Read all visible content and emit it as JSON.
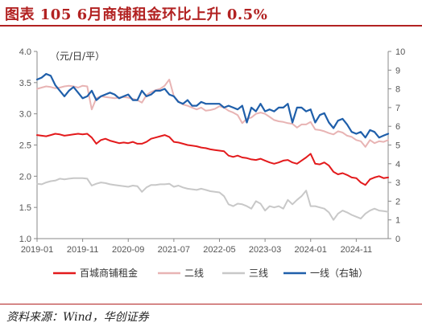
{
  "header": {
    "title": "图表 105   6月商铺租金环比上升 0.5%"
  },
  "footer": {
    "source": "资料来源：Wind，华创证券"
  },
  "colors": {
    "accent": "#b22222",
    "series_main": "#e31a1c",
    "series_tier2": "#e8b4b4",
    "series_tier3": "#c8c8c8",
    "series_tier1": "#1f5faa"
  },
  "chart_data": {
    "type": "line",
    "unit_label": "（元/日/平）",
    "x": [
      "2019-01",
      "2019-02",
      "2019-03",
      "2019-04",
      "2019-05",
      "2019-06",
      "2019-07",
      "2019-08",
      "2019-09",
      "2019-10",
      "2019-11",
      "2019-12",
      "2020-01",
      "2020-02",
      "2020-03",
      "2020-04",
      "2020-05",
      "2020-06",
      "2020-07",
      "2020-08",
      "2020-09",
      "2020-10",
      "2020-11",
      "2020-12",
      "2021-01",
      "2021-02",
      "2021-03",
      "2021-04",
      "2021-05",
      "2021-06",
      "2021-07",
      "2021-08",
      "2021-09",
      "2021-10",
      "2021-11",
      "2021-12",
      "2022-01",
      "2022-02",
      "2022-03",
      "2022-04",
      "2022-05",
      "2022-06",
      "2022-07",
      "2022-08",
      "2022-09",
      "2022-10",
      "2022-11",
      "2022-12",
      "2023-01",
      "2023-02",
      "2023-03",
      "2023-04",
      "2023-05",
      "2023-06",
      "2023-07",
      "2023-08",
      "2023-09",
      "2023-10",
      "2023-11",
      "2023-12",
      "2024-01",
      "2024-02",
      "2024-03",
      "2024-04",
      "2024-05",
      "2024-06",
      "2024-07",
      "2024-08",
      "2024-09",
      "2024-10",
      "2024-11",
      "2024-12",
      "2025-01",
      "2025-02",
      "2025-03",
      "2025-04",
      "2025-05",
      "2025-06"
    ],
    "x_ticks": [
      "2019-01",
      "2019-11",
      "2020-09",
      "2021-07",
      "2022-05",
      "2023-03",
      "2024-01",
      "2024-11"
    ],
    "y_left": {
      "lim": [
        1.0,
        4.0
      ],
      "ticks": [
        "1.0",
        "1.5",
        "2.0",
        "2.5",
        "3.0",
        "3.5",
        "4.0"
      ]
    },
    "y_right": {
      "lim": [
        0,
        10
      ],
      "ticks": [
        "0",
        "1",
        "2",
        "3",
        "4",
        "5",
        "6",
        "7",
        "8",
        "9",
        "10"
      ]
    },
    "grid": false,
    "legend_position": "bottom",
    "series": [
      {
        "name": "百城商铺租金",
        "axis": "left",
        "color": "#e31a1c",
        "width": 2,
        "values": [
          2.66,
          2.65,
          2.64,
          2.66,
          2.68,
          2.67,
          2.65,
          2.66,
          2.67,
          2.68,
          2.67,
          2.68,
          2.62,
          2.52,
          2.58,
          2.6,
          2.57,
          2.55,
          2.53,
          2.54,
          2.53,
          2.55,
          2.52,
          2.52,
          2.55,
          2.6,
          2.62,
          2.64,
          2.66,
          2.63,
          2.55,
          2.54,
          2.52,
          2.5,
          2.49,
          2.48,
          2.46,
          2.45,
          2.43,
          2.42,
          2.41,
          2.4,
          2.33,
          2.31,
          2.33,
          2.3,
          2.29,
          2.27,
          2.26,
          2.28,
          2.25,
          2.22,
          2.2,
          2.22,
          2.25,
          2.26,
          2.22,
          2.2,
          2.25,
          2.3,
          2.36,
          2.2,
          2.19,
          2.22,
          2.17,
          2.07,
          2.03,
          2.05,
          2.02,
          1.98,
          1.97,
          1.9,
          1.86,
          1.95,
          1.98,
          2.0,
          1.97,
          1.98
        ]
      },
      {
        "name": "二线",
        "axis": "left",
        "color": "#e8b4b4",
        "width": 2,
        "values": [
          3.4,
          3.42,
          3.44,
          3.43,
          3.41,
          3.42,
          3.44,
          3.45,
          3.44,
          3.42,
          3.45,
          3.44,
          3.07,
          3.25,
          3.28,
          3.27,
          3.26,
          3.25,
          3.26,
          3.27,
          3.26,
          3.24,
          3.22,
          3.18,
          3.3,
          3.35,
          3.38,
          3.4,
          3.45,
          3.55,
          3.28,
          3.2,
          3.15,
          3.13,
          3.1,
          3.07,
          3.1,
          3.05,
          3.06,
          3.08,
          3.12,
          3.1,
          3.05,
          3.02,
          2.98,
          2.85,
          2.92,
          2.94,
          3.0,
          3.02,
          3.0,
          2.95,
          2.9,
          2.88,
          2.87,
          2.85,
          2.84,
          2.78,
          2.83,
          2.83,
          2.87,
          2.75,
          2.74,
          2.72,
          2.69,
          2.67,
          2.72,
          2.7,
          2.65,
          2.63,
          2.58,
          2.56,
          2.47,
          2.58,
          2.53,
          2.56,
          2.55,
          2.58
        ]
      },
      {
        "name": "三线",
        "axis": "left",
        "color": "#c8c8c8",
        "width": 2,
        "values": [
          1.88,
          1.87,
          1.9,
          1.92,
          1.93,
          1.96,
          1.95,
          1.96,
          1.97,
          1.97,
          1.97,
          1.96,
          1.85,
          1.88,
          1.9,
          1.89,
          1.87,
          1.86,
          1.85,
          1.84,
          1.83,
          1.85,
          1.84,
          1.75,
          1.82,
          1.86,
          1.86,
          1.87,
          1.87,
          1.88,
          1.83,
          1.85,
          1.82,
          1.8,
          1.79,
          1.78,
          1.8,
          1.78,
          1.76,
          1.75,
          1.74,
          1.68,
          1.55,
          1.52,
          1.56,
          1.55,
          1.52,
          1.48,
          1.6,
          1.56,
          1.45,
          1.52,
          1.5,
          1.52,
          1.48,
          1.62,
          1.55,
          1.62,
          1.68,
          1.77,
          1.52,
          1.52,
          1.5,
          1.48,
          1.42,
          1.3,
          1.4,
          1.45,
          1.42,
          1.38,
          1.35,
          1.32,
          1.4,
          1.45,
          1.48,
          1.45,
          1.44,
          1.43
        ]
      },
      {
        "name": "一线（右轴）",
        "axis": "right",
        "color": "#1f5faa",
        "width": 2.2,
        "values": [
          8.5,
          8.6,
          8.8,
          8.7,
          8.2,
          7.9,
          7.6,
          7.9,
          8.1,
          7.8,
          7.5,
          7.6,
          7.9,
          7.4,
          7.6,
          7.7,
          7.8,
          7.7,
          7.5,
          7.6,
          7.7,
          7.4,
          7.4,
          7.9,
          7.6,
          7.7,
          7.9,
          7.9,
          8.0,
          7.7,
          7.6,
          7.3,
          7.2,
          7.4,
          7.1,
          7.1,
          7.3,
          7.2,
          7.2,
          7.2,
          7.2,
          7.0,
          7.1,
          7.0,
          6.9,
          7.1,
          6.2,
          7.0,
          6.8,
          7.2,
          6.8,
          6.9,
          6.8,
          7.0,
          7.0,
          7.2,
          6.2,
          7.0,
          7.0,
          6.8,
          6.9,
          6.2,
          6.6,
          6.7,
          6.2,
          5.9,
          6.3,
          6.4,
          6.1,
          5.7,
          5.6,
          5.7,
          5.4,
          5.8,
          5.7,
          5.4,
          5.5,
          5.6
        ]
      }
    ]
  }
}
